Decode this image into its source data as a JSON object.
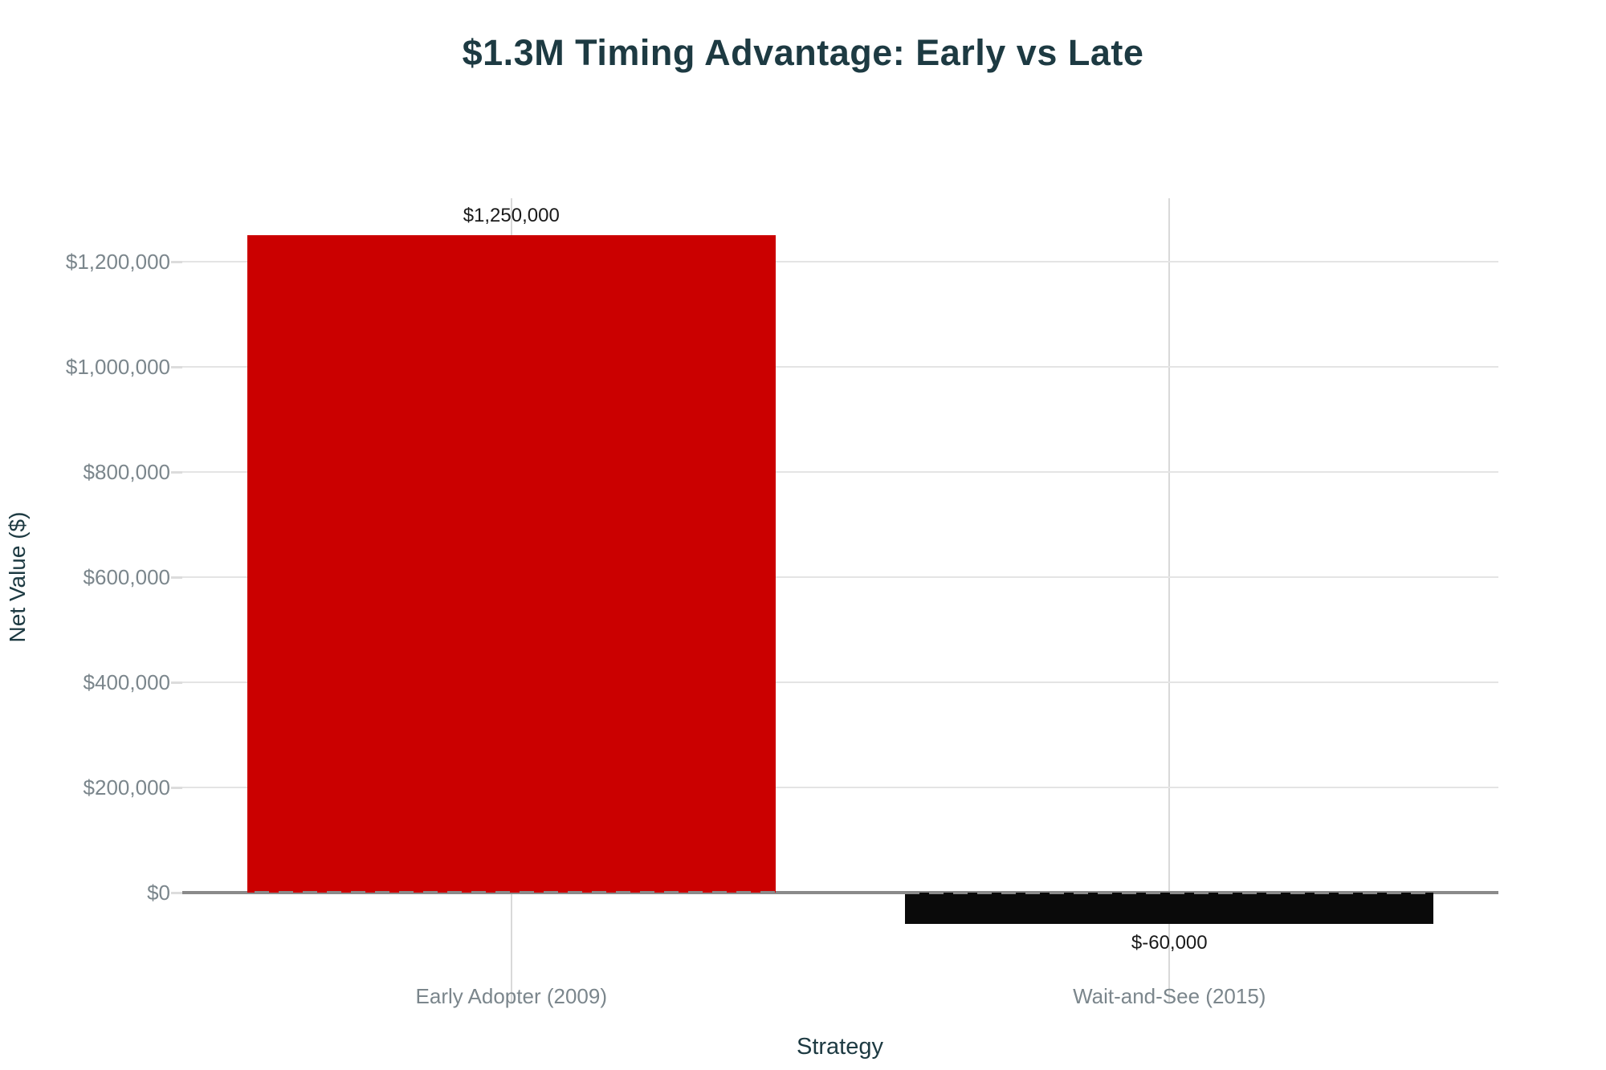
{
  "chart_data": {
    "type": "bar",
    "title": "$1.3M Timing Advantage: Early vs Late",
    "xlabel": "Strategy",
    "ylabel": "Net Value ($)",
    "categories": [
      "Early Adopter (2009)",
      "Wait-and-See (2015)"
    ],
    "values": [
      1250000,
      -60000
    ],
    "value_labels": [
      "$1,250,000",
      "$-60,000"
    ],
    "bar_colors": [
      "#cb0000",
      "#0a0a0a"
    ],
    "y_ticks": [
      {
        "value": 0,
        "label": "$0"
      },
      {
        "value": 200000,
        "label": "$200,000"
      },
      {
        "value": 400000,
        "label": "$400,000"
      },
      {
        "value": 600000,
        "label": "$600,000"
      },
      {
        "value": 800000,
        "label": "$800,000"
      },
      {
        "value": 1000000,
        "label": "$1,000,000"
      },
      {
        "value": 1200000,
        "label": "$1,200,000"
      }
    ],
    "ylim": [
      -220000,
      1320000
    ],
    "grid": true,
    "legend_position": "none",
    "zero_line_style": "solid with dashed overlay across bars",
    "colors": {
      "title": "#1d3a42",
      "axis_titles": "#1d3a42",
      "tick_labels": "#7b868c",
      "value_labels": "#1a1a1a",
      "category_labels": "#7b868c",
      "gridline": "#e4e4e4",
      "vertical_gridline": "#d9d9d9",
      "tick_mark": "#dcdcdc",
      "zero_line": "#8a8a8a",
      "background": "#ffffff"
    }
  }
}
